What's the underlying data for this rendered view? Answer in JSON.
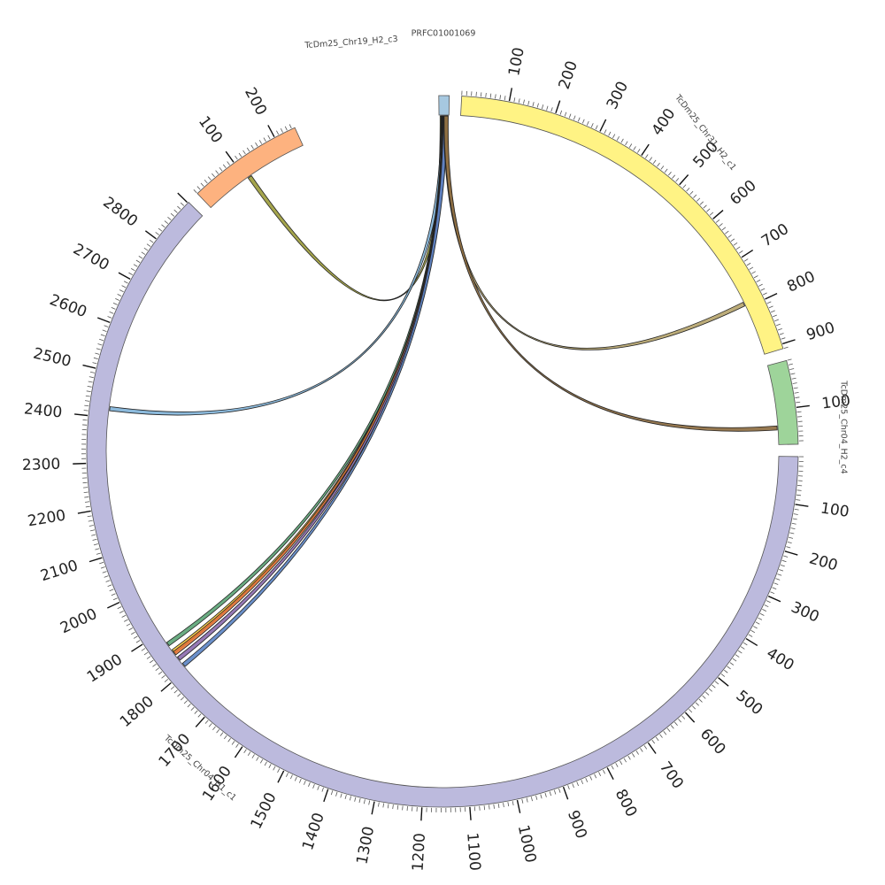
{
  "segments": [
    {
      "id": "prfc",
      "name": "PRFC01001069",
      "length": 22,
      "color": "#a6c8e0",
      "tick_labels": []
    },
    {
      "id": "chr31",
      "name": "TcDm25_Chr31_H2_c1",
      "length": 910,
      "color": "#fff384",
      "tick_labels": [
        "100",
        "200",
        "300",
        "400",
        "500",
        "600",
        "700",
        "800",
        "900"
      ]
    },
    {
      "id": "chr04h2",
      "name": "TcDm25_Chr04_H2_c4",
      "length": 177,
      "color": "#9ed49a",
      "tick_labels": [
        "100"
      ]
    },
    {
      "id": "chr04h1",
      "name": "TcDm25_Chr04_H1_c1",
      "length": 2902,
      "color": "#bcbadd",
      "tick_labels": [
        "100",
        "200",
        "300",
        "400",
        "500",
        "600",
        "700",
        "800",
        "900",
        "1000",
        "1100",
        "1200",
        "1300",
        "1400",
        "1500",
        "1600",
        "1700",
        "1800",
        "1900",
        "2000",
        "2100",
        "2200",
        "2300",
        "2400",
        "2500",
        "2600",
        "2700",
        "2800"
      ]
    },
    {
      "id": "chr19",
      "name": "TcDm25_Chr19_H2_c3",
      "length": 247,
      "color": "#fdb27f",
      "tick_labels": [
        "100",
        "200"
      ]
    }
  ],
  "links": [
    {
      "from": "prfc",
      "from_pos": 7,
      "to": "chr19",
      "to_pos": 110,
      "color": "#9b9b3a"
    },
    {
      "from": "prfc",
      "from_pos": 9,
      "to": "chr04h1",
      "to_pos": 2420,
      "color": "#7fb2d8"
    },
    {
      "from": "prfc",
      "from_pos": 10,
      "to": "chr04h1",
      "to_pos": 1870,
      "color": "#5aa374"
    },
    {
      "from": "prfc",
      "from_pos": 11,
      "to": "chr04h1",
      "to_pos": 1850,
      "color": "#f5c63d"
    },
    {
      "from": "prfc",
      "from_pos": 12,
      "to": "chr04h1",
      "to_pos": 1845,
      "color": "#e87838"
    },
    {
      "from": "prfc",
      "from_pos": 13,
      "to": "chr04h1",
      "to_pos": 1830,
      "color": "#8a6aad"
    },
    {
      "from": "prfc",
      "from_pos": 14,
      "to": "chr04h1",
      "to_pos": 1812,
      "color": "#5b84c4"
    },
    {
      "from": "prfc",
      "from_pos": 15,
      "to": "chr31",
      "to_pos": 790,
      "color": "#b5a36a"
    },
    {
      "from": "prfc",
      "from_pos": 16,
      "to": "chr04h2",
      "to_pos": 140,
      "color": "#8c6a3e"
    }
  ]
}
